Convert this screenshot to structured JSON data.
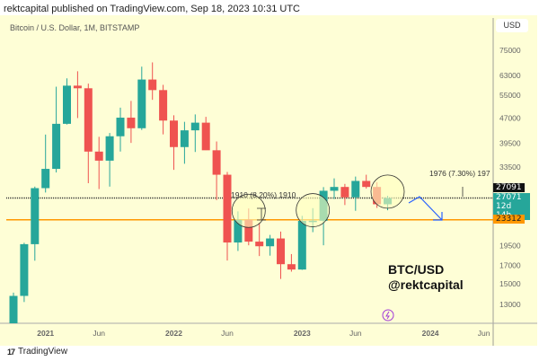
{
  "header": {
    "published": "rektcapital published on TradingView.com, Sep 18, 2023 10:31 UTC"
  },
  "symbol": "Bitcoin / U.S. Dollar, 1M, BITSTAMP",
  "currency": "USD",
  "footer": {
    "brand": "TradingView",
    "logo_icon": "tradingview-logo-icon"
  },
  "watermark": {
    "line1": "BTC/USD",
    "line2": "@rektcapital"
  },
  "labels": {
    "last": "27091",
    "current": "27071",
    "countdown": "12d 14h",
    "support": "23312"
  },
  "annotations": {
    "measure1": "1910 (8.20%) 1910",
    "measure2": "1976 (7.30%) 197"
  },
  "colors": {
    "up": "#26a69a",
    "down": "#ef5350",
    "support": "#ff9800",
    "arrow": "#2962ff",
    "bg": "#fefed6"
  },
  "chart_data": {
    "type": "candlestick",
    "title": "Bitcoin / U.S. Dollar, 1M, BITSTAMP",
    "scale": "log",
    "ylim": [
      11500,
      85000
    ],
    "yticks": [
      75000,
      63000,
      55000,
      47000,
      39500,
      33500,
      19500,
      17000,
      15000,
      13000
    ],
    "xticks": [
      {
        "label": "2021",
        "index": 3
      },
      {
        "label": "Jun",
        "index": 8
      },
      {
        "label": "2022",
        "index": 15
      },
      {
        "label": "Jun",
        "index": 20
      },
      {
        "label": "2023",
        "index": 27
      },
      {
        "label": "Jun",
        "index": 32
      },
      {
        "label": "2024",
        "index": 39
      },
      {
        "label": "Jun",
        "index": 44
      }
    ],
    "hlines": [
      {
        "name": "resistance",
        "value": 27091,
        "color": "#333333"
      },
      {
        "name": "support",
        "value": 23312,
        "color": "#ff9800"
      }
    ],
    "circles": [
      {
        "index": 22,
        "value": 24800
      },
      {
        "index": 28,
        "value": 24900
      },
      {
        "index": 35,
        "value": 28300
      }
    ],
    "candles": [
      [
        "2020-10",
        10780,
        14100,
        10550,
        13790
      ],
      [
        "2020-11",
        13790,
        19890,
        13220,
        19700
      ],
      [
        "2020-12",
        19700,
        29300,
        17580,
        28990
      ],
      [
        "2021-01",
        28990,
        41950,
        28130,
        33110
      ],
      [
        "2021-02",
        33110,
        58350,
        32300,
        45170
      ],
      [
        "2021-03",
        45170,
        61790,
        44950,
        58770
      ],
      [
        "2021-04",
        58770,
        64900,
        47000,
        57720
      ],
      [
        "2021-05",
        57720,
        59600,
        30000,
        37300
      ],
      [
        "2021-06",
        37300,
        41300,
        28800,
        35040
      ],
      [
        "2021-07",
        35040,
        42400,
        29300,
        41460
      ],
      [
        "2021-08",
        41460,
        50500,
        37300,
        47130
      ],
      [
        "2021-09",
        47130,
        52900,
        39600,
        43820
      ],
      [
        "2021-10",
        43820,
        67000,
        43300,
        61300
      ],
      [
        "2021-11",
        61300,
        69000,
        53300,
        57000
      ],
      [
        "2021-12",
        57000,
        59100,
        42000,
        46200
      ],
      [
        "2022-01",
        46200,
        47900,
        32900,
        38480
      ],
      [
        "2022-02",
        38480,
        45800,
        34300,
        43190
      ],
      [
        "2022-03",
        43190,
        48200,
        37200,
        45530
      ],
      [
        "2022-04",
        45530,
        47400,
        37700,
        37640
      ],
      [
        "2022-05",
        37640,
        40000,
        26700,
        31800
      ],
      [
        "2022-06",
        31800,
        32400,
        17600,
        19930
      ],
      [
        "2022-07",
        19930,
        24700,
        18800,
        23300
      ],
      [
        "2022-08",
        23300,
        25200,
        19550,
        20050
      ],
      [
        "2022-09",
        20050,
        22800,
        18150,
        19420
      ],
      [
        "2022-10",
        19420,
        21000,
        18200,
        20490
      ],
      [
        "2022-11",
        20490,
        21480,
        15500,
        17160
      ],
      [
        "2022-12",
        17160,
        18400,
        16300,
        16540
      ],
      [
        "2023-01",
        16540,
        23950,
        16500,
        23130
      ],
      [
        "2023-02",
        23130,
        25250,
        21400,
        23150
      ],
      [
        "2023-03",
        23150,
        29200,
        19550,
        28470
      ],
      [
        "2023-04",
        28470,
        31000,
        26900,
        29230
      ],
      [
        "2023-05",
        29230,
        29850,
        25800,
        27210
      ],
      [
        "2023-06",
        27210,
        31400,
        24800,
        30470
      ],
      [
        "2023-07",
        30470,
        31800,
        28900,
        29230
      ],
      [
        "2023-08",
        29230,
        30200,
        25300,
        25940
      ],
      [
        "2023-09",
        25940,
        27500,
        24900,
        27071
      ]
    ]
  }
}
